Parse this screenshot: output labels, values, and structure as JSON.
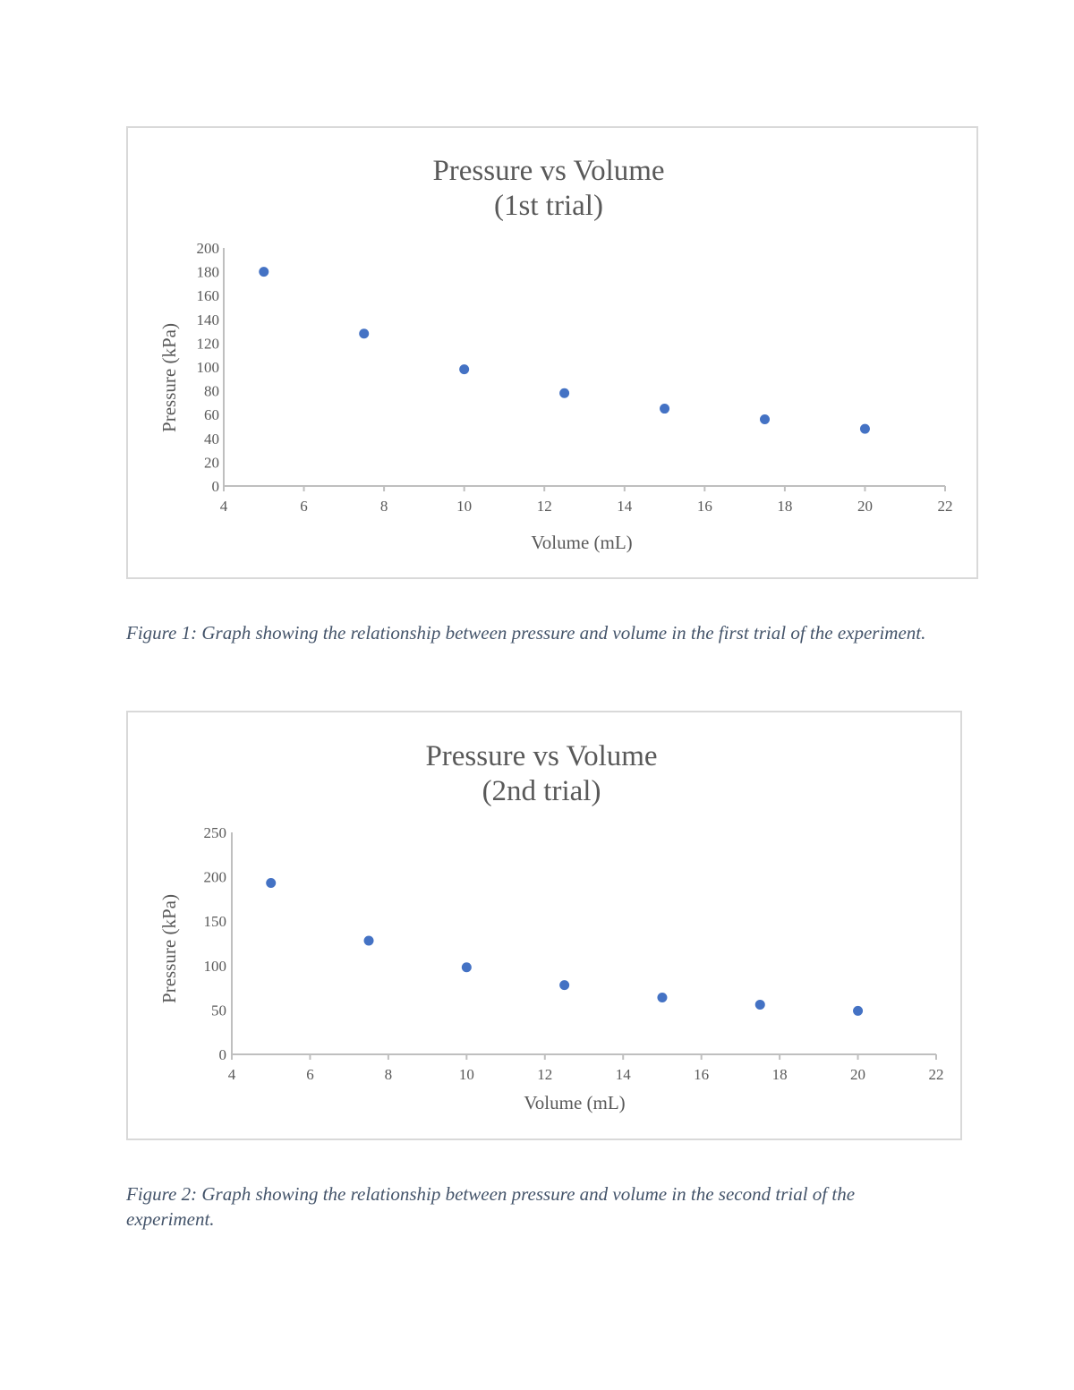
{
  "chart_data": [
    {
      "type": "scatter",
      "title": "Pressure vs Volume\n(1st trial)",
      "title_lines": [
        "Pressure vs Volume",
        "(1st trial)"
      ],
      "xlabel": "Volume (mL)",
      "ylabel": "Pressure (kPa)",
      "xlim": [
        4,
        22
      ],
      "ylim": [
        0,
        200
      ],
      "xticks": [
        4,
        6,
        8,
        10,
        12,
        14,
        16,
        18,
        20,
        22
      ],
      "yticks": [
        0,
        20,
        40,
        60,
        80,
        100,
        120,
        140,
        160,
        180,
        200
      ],
      "grid": false,
      "legend": "none",
      "color": "#4472c4",
      "x": [
        5,
        7.5,
        10,
        12.5,
        15,
        17.5,
        20
      ],
      "y": [
        180,
        128,
        98,
        78,
        65,
        56,
        48
      ]
    },
    {
      "type": "scatter",
      "title": "Pressure vs Volume\n(2nd trial)",
      "title_lines": [
        "Pressure vs Volume",
        "(2nd trial)"
      ],
      "xlabel": "Volume (mL)",
      "ylabel": "Pressure (kPa)",
      "xlim": [
        4,
        22
      ],
      "ylim": [
        0,
        250
      ],
      "xticks": [
        4,
        6,
        8,
        10,
        12,
        14,
        16,
        18,
        20,
        22
      ],
      "yticks": [
        0,
        50,
        100,
        150,
        200,
        250
      ],
      "grid": false,
      "legend": "none",
      "color": "#4472c4",
      "x": [
        5,
        7.5,
        10,
        12.5,
        15,
        17.5,
        20
      ],
      "y": [
        193,
        128,
        98,
        78,
        64,
        56,
        49
      ]
    }
  ],
  "captions": [
    "Figure 1: Graph showing the relationship between pressure and volume in the first trial of the experiment.",
    "Figure 2: Graph showing the relationship between pressure and volume in the second trial of the experiment."
  ]
}
